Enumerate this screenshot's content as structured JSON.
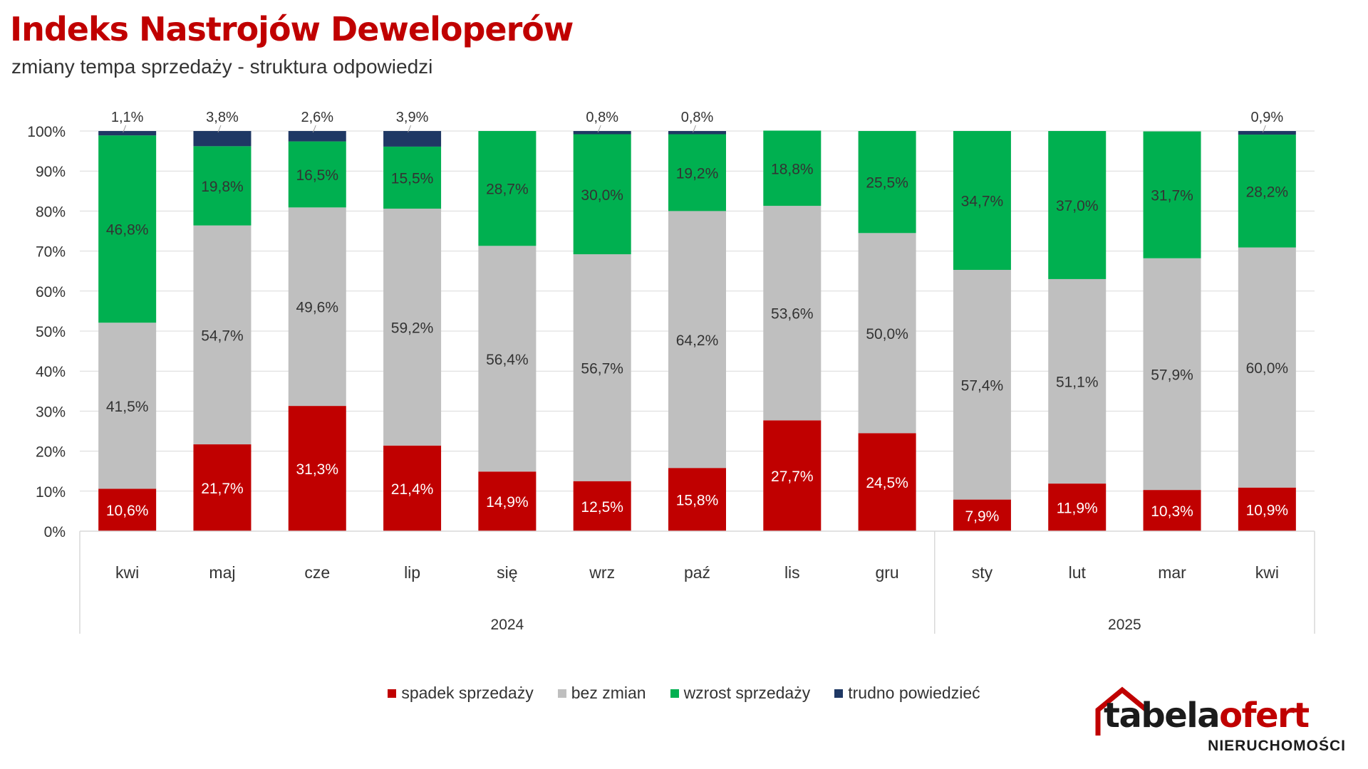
{
  "title": "Indeks Nastrojów Deweloperów",
  "subtitle": "zmiany tempa sprzedaży - struktura odpowiedzi",
  "colors": {
    "spadek": "#c00000",
    "bez_zmian": "#bfbfbf",
    "wzrost": "#00b050",
    "trudno": "#1f3864",
    "brand_red": "#c00000"
  },
  "legend": [
    {
      "label": "spadek sprzedaży",
      "color": "#c00000"
    },
    {
      "label": "bez zmian",
      "color": "#bfbfbf"
    },
    {
      "label": "wzrost sprzedaży",
      "color": "#00b050"
    },
    {
      "label": "trudno powiedzieć",
      "color": "#1f3864"
    }
  ],
  "logo": {
    "part1": "tabela",
    "part2": "ofert",
    "sub": "NIERUCHOMOŚCI"
  },
  "chart_data": {
    "type": "bar",
    "stacked": true,
    "title": "Indeks Nastrojów Deweloperów",
    "subtitle": "zmiany tempa sprzedaży - struktura odpowiedzi",
    "categories": [
      "kwi",
      "maj",
      "cze",
      "lip",
      "się",
      "wrz",
      "paź",
      "lis",
      "gru",
      "sty",
      "lut",
      "mar",
      "kwi"
    ],
    "category_groups": [
      {
        "label": "2024",
        "count": 9
      },
      {
        "label": "2025",
        "count": 4
      }
    ],
    "y_ticks": [
      "0%",
      "10%",
      "20%",
      "30%",
      "40%",
      "50%",
      "60%",
      "70%",
      "80%",
      "90%",
      "100%"
    ],
    "ylim": [
      0,
      100
    ],
    "legend_position": "bottom",
    "series": [
      {
        "name": "spadek sprzedaży",
        "color": "#c00000",
        "values": [
          10.6,
          21.7,
          31.3,
          21.4,
          14.9,
          12.5,
          15.8,
          27.7,
          24.5,
          7.9,
          11.9,
          10.3,
          10.9
        ],
        "labels": [
          "10,6%",
          "21,7%",
          "31,3%",
          "21,4%",
          "14,9%",
          "12,5%",
          "15,8%",
          "27,7%",
          "24,5%",
          "7,9%",
          "11,9%",
          "10,3%",
          "10,9%"
        ]
      },
      {
        "name": "bez zmian",
        "color": "#bfbfbf",
        "values": [
          41.5,
          54.7,
          49.6,
          59.2,
          56.4,
          56.7,
          64.2,
          53.6,
          50.0,
          57.4,
          51.1,
          57.9,
          60.0
        ],
        "labels": [
          "41,5%",
          "54,7%",
          "49,6%",
          "59,2%",
          "56,4%",
          "56,7%",
          "64,2%",
          "53,6%",
          "50,0%",
          "57,4%",
          "51,1%",
          "57,9%",
          "60,0%"
        ]
      },
      {
        "name": "wzrost sprzedaży",
        "color": "#00b050",
        "values": [
          46.8,
          19.8,
          16.5,
          15.5,
          28.7,
          30.0,
          19.2,
          18.8,
          25.5,
          34.7,
          37.0,
          31.7,
          28.2
        ],
        "labels": [
          "46,8%",
          "19,8%",
          "16,5%",
          "15,5%",
          "28,7%",
          "30,0%",
          "19,2%",
          "18,8%",
          "25,5%",
          "34,7%",
          "37,0%",
          "31,7%",
          "28,2%"
        ]
      },
      {
        "name": "trudno powiedzieć",
        "color": "#1f3864",
        "values": [
          1.1,
          3.8,
          2.6,
          3.9,
          0,
          0.8,
          0.8,
          0,
          0,
          0,
          0,
          0,
          0.9
        ],
        "labels": [
          "1,1%",
          "3,8%",
          "2,6%",
          "3,9%",
          "",
          "0,8%",
          "0,8%",
          "",
          "",
          "",
          "",
          "",
          "0,9%"
        ]
      }
    ]
  }
}
